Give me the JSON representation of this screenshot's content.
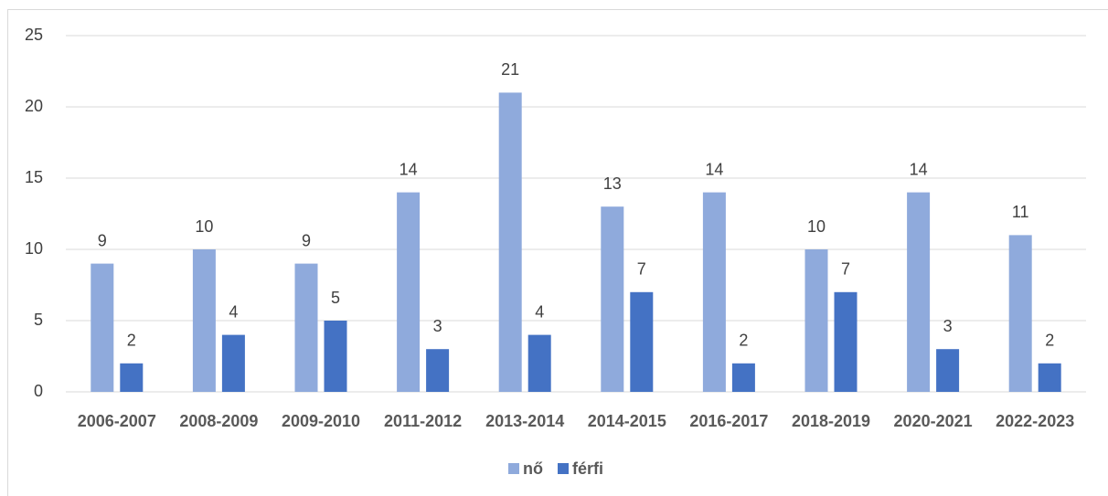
{
  "chart_data": {
    "type": "bar",
    "categories": [
      "2006-2007",
      "2008-2009",
      "2009-2010",
      "2011-2012",
      "2013-2014",
      "2014-2015",
      "2016-2017",
      "2018-2019",
      "2020-2021",
      "2022-2023"
    ],
    "series": [
      {
        "name": "nő",
        "color": "#8faadc",
        "values": [
          9,
          10,
          9,
          14,
          21,
          13,
          14,
          10,
          14,
          11
        ]
      },
      {
        "name": "férfi",
        "color": "#4472c4",
        "values": [
          2,
          4,
          5,
          3,
          4,
          7,
          2,
          7,
          3,
          2
        ]
      }
    ],
    "ylim": [
      0,
      25
    ],
    "yticks": [
      0,
      5,
      10,
      15,
      20,
      25
    ],
    "grid": true,
    "legend": "bottom"
  }
}
